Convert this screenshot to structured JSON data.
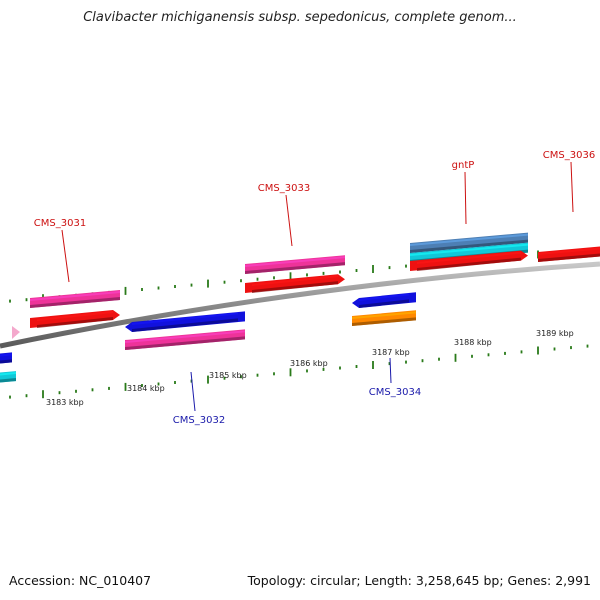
{
  "title": "Clavibacter michiganensis subsp. sepedonicus, complete genom...",
  "footer": {
    "accession": "Accession: NC_010407",
    "stats": "Topology: circular; Length: 3,258,645 bp; Genes: 2,991"
  },
  "colors": {
    "backbone": "#8a8a8a",
    "tick": "#2a7a1a",
    "label_forward": "#cc1111",
    "label_reverse": "#1a1aaa",
    "pink": "#ee3399",
    "red": "#ee1111",
    "blue": "#1111dd",
    "cyan": "#11c8d8",
    "orange": "#ff8800",
    "steel": "#4d7fb4",
    "light_pink": "#f4a8cc"
  },
  "ticks": [
    {
      "label": "3183 kbp"
    },
    {
      "label": "3184 kbp"
    },
    {
      "label": "3185 kbp"
    },
    {
      "label": "3186 kbp"
    },
    {
      "label": "3187 kbp"
    },
    {
      "label": "3188 kbp"
    },
    {
      "label": "3189 kbp"
    }
  ],
  "genes": [
    {
      "label": "CMS_3031",
      "strand": "forward",
      "tracks": [
        "pink",
        "red"
      ]
    },
    {
      "label": "CMS_3032",
      "strand": "reverse",
      "tracks": [
        "blue",
        "pink"
      ]
    },
    {
      "label": "CMS_3033",
      "strand": "forward",
      "tracks": [
        "pink",
        "red"
      ]
    },
    {
      "label": "CMS_3034",
      "strand": "reverse",
      "tracks": [
        "blue",
        "orange"
      ]
    },
    {
      "label": "gntP",
      "strand": "forward",
      "tracks": [
        "steel",
        "cyan",
        "red"
      ]
    },
    {
      "label": "CMS_3036",
      "strand": "forward",
      "tracks": [
        "red"
      ]
    }
  ],
  "edge_features": [
    {
      "side": "left",
      "tracks": [
        "blue",
        "cyan"
      ]
    },
    {
      "side": "left",
      "tracks": [
        "light_pink"
      ]
    }
  ]
}
